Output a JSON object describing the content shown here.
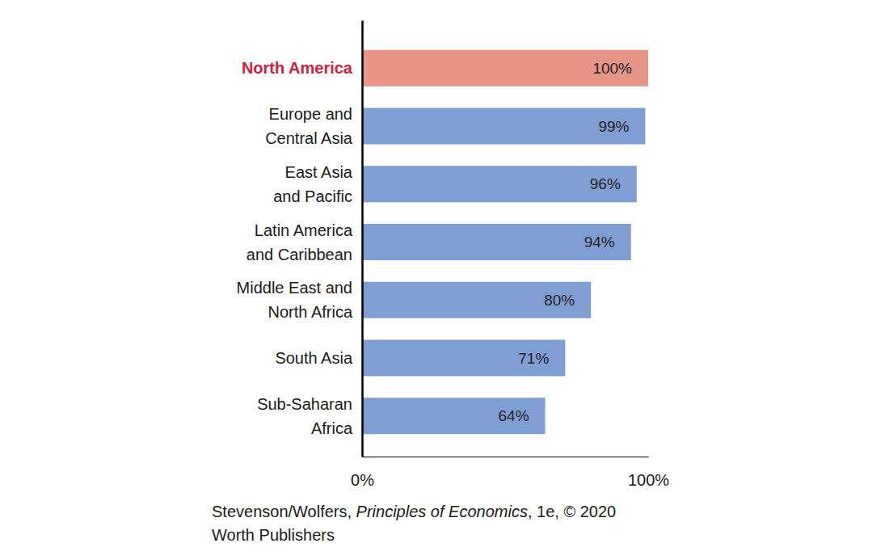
{
  "chart_data": {
    "type": "bar",
    "orientation": "horizontal",
    "categories": [
      "North America",
      "Europe and\nCentral Asia",
      "East Asia\nand Pacific",
      "Latin America\nand Caribbean",
      "Middle East and\nNorth Africa",
      "South Asia",
      "Sub-Saharan\nAfrica"
    ],
    "values": [
      100,
      99,
      96,
      94,
      80,
      71,
      64
    ],
    "value_labels": [
      "100%",
      "99%",
      "96%",
      "94%",
      "80%",
      "71%",
      "64%"
    ],
    "data_labels": true,
    "colors": [
      "#e69587",
      "#7f9fd4",
      "#7f9fd4",
      "#7f9fd4",
      "#7f9fd4",
      "#7f9fd4",
      "#7f9fd4"
    ],
    "xlim": [
      0,
      100
    ],
    "xticks": [
      {
        "value": 0,
        "label": "0%"
      },
      {
        "value": 100,
        "label": "100%"
      }
    ],
    "grid": false,
    "source": [
      [
        "Stevenson/Wolfers, ",
        "Principles of Economics",
        ", 1e, © 2020"
      ],
      [
        "Worth Publishers"
      ]
    ]
  }
}
